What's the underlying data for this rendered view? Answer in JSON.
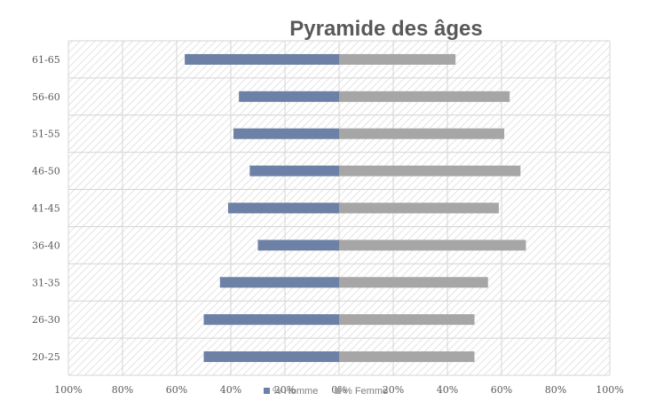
{
  "chart_data": {
    "type": "bar",
    "orientation": "horizontal",
    "title": "Pyramide des âges",
    "categories": [
      "61-65",
      "56-60",
      "51-55",
      "46-50",
      "41-45",
      "36-40",
      "31-35",
      "26-30",
      "20-25"
    ],
    "series": [
      {
        "name": "% Homme",
        "values": [
          57,
          37,
          39,
          33,
          41,
          30,
          44,
          50,
          50
        ],
        "color": "#6d80a5",
        "side": "left"
      },
      {
        "name": "% Femme",
        "values": [
          43,
          63,
          61,
          67,
          59,
          69,
          55,
          50,
          50
        ],
        "color": "#a6a6a6",
        "side": "right"
      }
    ],
    "xlim": [
      -100,
      100
    ],
    "x_ticks": [
      "100%",
      "80%",
      "60%",
      "40%",
      "20%",
      "0%",
      "20%",
      "40%",
      "60%",
      "80%",
      "100%"
    ],
    "grid": true,
    "legend_position": "bottom-center"
  }
}
